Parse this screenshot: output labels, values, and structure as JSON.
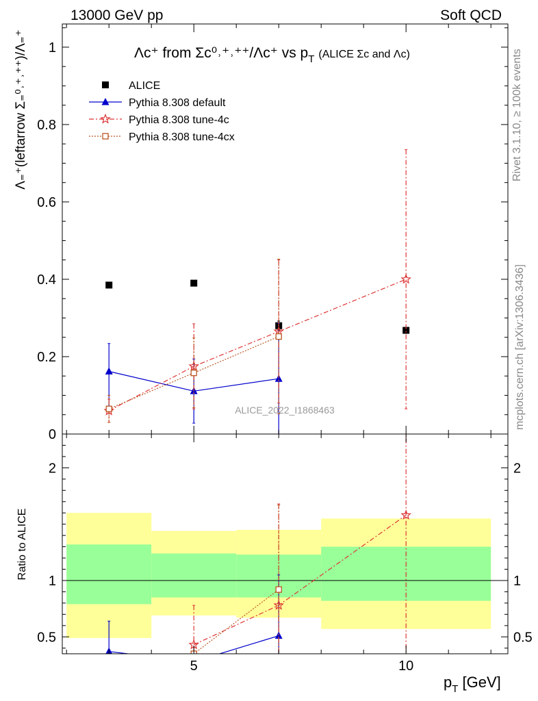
{
  "header": {
    "left": "13000 GeV pp",
    "right": "Soft QCD"
  },
  "side_labels": {
    "rivet": "Rivet 3.1.10, ≥ 100k events",
    "mcplots": "mcplots.cern.ch [arXiv:1306.3436]"
  },
  "watermark": "ALICE_2022_I1868463",
  "title": {
    "main": "Λc⁺ from Σc⁰˒⁺˒⁺⁺/Λc⁺ vs p",
    "sub_T": "T",
    "paren": "(ALICE Σc and Λc)"
  },
  "axes": {
    "top_ylabel": "Λ₌⁺(leftarrow Σ₌⁰˒⁺˒⁺⁺)/Λ₌⁺",
    "bottom_ylabel": "Ratio to ALICE",
    "xlabel": "p",
    "xlabel_sub": "T",
    "xlabel_unit": " [GeV]"
  },
  "legend": {
    "items": [
      {
        "label": "ALICE",
        "color": "#000000",
        "marker": "square-filled"
      },
      {
        "label": "Pythia 8.308 default",
        "color": "#0000cc",
        "marker": "triangle-filled"
      },
      {
        "label": "Pythia 8.308 tune-4c",
        "color": "#dd3333",
        "marker": "star-open"
      },
      {
        "label": "Pythia 8.308 tune-4cx",
        "color": "#bb5522",
        "marker": "square-open"
      }
    ]
  },
  "chart_data": [
    {
      "type": "scatter",
      "panel": "main",
      "xlim": [
        1.9,
        12.4
      ],
      "ylim": [
        0,
        1.06
      ],
      "x_ticks": [],
      "y_ticks": [
        0,
        0.2,
        0.4,
        0.6,
        0.8,
        1
      ],
      "y_tick_labels": [
        "0",
        "0.2",
        "0.4",
        "0.6",
        "0.8",
        "1"
      ],
      "series": [
        {
          "name": "ALICE",
          "color": "#000000",
          "marker": "square-filled",
          "x": [
            3,
            5,
            7,
            10
          ],
          "y": [
            0.385,
            0.39,
            0.28,
            0.268
          ],
          "yerr": [
            [
              0,
              0
            ],
            [
              0,
              0
            ],
            [
              0.012,
              0.012
            ],
            [
              0,
              0
            ]
          ]
        },
        {
          "name": "Pythia 8.308 default",
          "color": "#0000cc",
          "marker": "triangle-filled",
          "x": [
            3,
            5,
            7
          ],
          "y": [
            0.162,
            0.111,
            0.143
          ],
          "yerr": [
            [
              0.095,
              0.072
            ],
            [
              0.083,
              0.083
            ],
            [
              0.143,
              0.143
            ]
          ],
          "dash": ""
        },
        {
          "name": "Pythia 8.308 tune-4c",
          "color": "#dd3333",
          "marker": "star-open",
          "x": [
            3,
            5,
            7,
            10
          ],
          "y": [
            0.06,
            0.175,
            0.265,
            0.4
          ],
          "yerr": [
            [
              0.03,
              0.03
            ],
            [
              0.11,
              0.11
            ],
            [
              0.185,
              0.185
            ],
            [
              0.335,
              0.335
            ]
          ],
          "dash": "7,3,2,3"
        },
        {
          "name": "Pythia 8.308 tune-4cx",
          "color": "#bb5522",
          "marker": "square-open",
          "x": [
            3,
            5,
            7
          ],
          "y": [
            0.065,
            0.158,
            0.252
          ],
          "yerr": [
            [
              0.035,
              0.035
            ],
            [
              0.09,
              0.09
            ],
            [
              0.2,
              0.2
            ]
          ],
          "dash": "2,2"
        }
      ]
    },
    {
      "type": "scatter",
      "panel": "ratio",
      "xlim": [
        1.9,
        12.4
      ],
      "ylim": [
        0.35,
        2.3
      ],
      "x_ticks": [
        5,
        10
      ],
      "x_tick_labels": [
        "5",
        "10"
      ],
      "y_ticks": [
        0.5,
        1,
        2
      ],
      "y_tick_labels": [
        "0.5",
        "1",
        "2"
      ],
      "reference_line": 1,
      "bands": [
        {
          "x0": 2,
          "x1": 4,
          "yellow": [
            0.49,
            1.6
          ],
          "green": [
            0.79,
            1.32
          ]
        },
        {
          "x0": 4,
          "x1": 6,
          "yellow": [
            0.69,
            1.44
          ],
          "green": [
            0.85,
            1.24
          ]
        },
        {
          "x0": 6,
          "x1": 8,
          "yellow": [
            0.67,
            1.45
          ],
          "green": [
            0.85,
            1.23
          ]
        },
        {
          "x0": 8,
          "x1": 12,
          "yellow": [
            0.57,
            1.55
          ],
          "green": [
            0.82,
            1.3
          ]
        }
      ],
      "band_colors": {
        "yellow": "#ffff99",
        "green": "#99ff99"
      },
      "series": [
        {
          "name": "Pythia 8.308 default",
          "color": "#0000cc",
          "marker": "triangle-filled",
          "x": [
            3,
            5,
            7
          ],
          "y": [
            0.37,
            0.28,
            0.51
          ],
          "yerr": [
            [
              0.2,
              0.27
            ],
            [
              0,
              0
            ],
            [
              0.5,
              0.54
            ]
          ],
          "dash": ""
        },
        {
          "name": "Pythia 8.308 tune-4c",
          "color": "#dd3333",
          "marker": "star-open",
          "x": [
            5,
            7,
            10
          ],
          "y": [
            0.43,
            0.78,
            1.58
          ],
          "yerr": [
            [
              0.3,
              0.35
            ],
            [
              0.78,
              0.9
            ],
            [
              1.5,
              1.5
            ]
          ],
          "dash": "7,3,2,3"
        },
        {
          "name": "Pythia 8.308 tune-4cx",
          "color": "#bb5522",
          "marker": "square-open",
          "x": [
            5,
            7
          ],
          "y": [
            0.35,
            0.92
          ],
          "yerr": [
            [
              0,
              0
            ],
            [
              0.92,
              0.75
            ]
          ],
          "dash": "2,2"
        }
      ]
    }
  ]
}
